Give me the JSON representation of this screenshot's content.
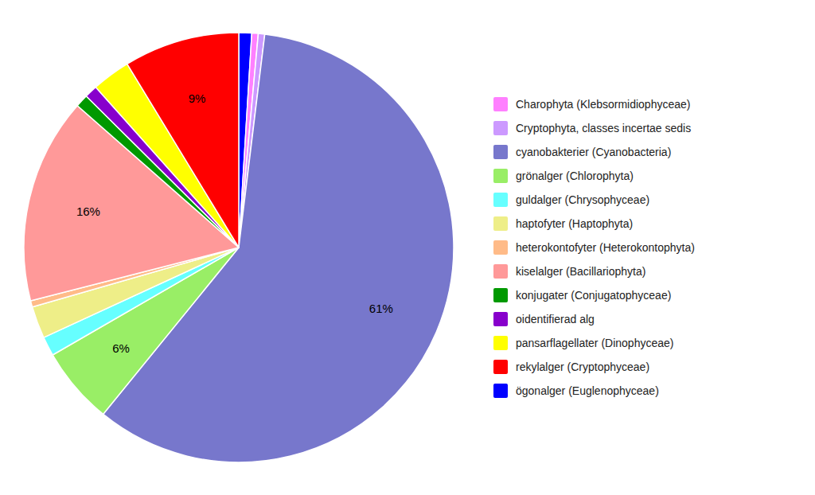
{
  "chart_data": {
    "type": "pie",
    "categories": [
      "ögonalger (Euglenophyceae)",
      "Charophyta (Klebsormidiophyceae)",
      "Cryptophyta, classes incertae sedis",
      "cyanobakterier (Cyanobacteria)",
      "grönalger (Chlorophyta)",
      "guldalger (Chrysophyceae)",
      "haptofyter (Haptophyta)",
      "heterokontofyter (Heterokontophyta)",
      "kiselalger (Bacillariophyta)",
      "konjugater (Conjugatophyceae)",
      "oidentifierad alg",
      "pansarflagellater (Dinophyceae)",
      "rekylalger (Cryptophyceae)"
    ],
    "values": [
      1.0,
      0.5,
      0.5,
      61,
      6,
      1.5,
      2.5,
      0.5,
      16,
      1.0,
      1.0,
      3.0,
      9
    ],
    "value_labels": [
      null,
      null,
      null,
      "61%",
      "6%",
      null,
      null,
      null,
      "16%",
      null,
      null,
      null,
      "9%"
    ],
    "colors": [
      "#0000FF",
      "#FF80FF",
      "#CC99FF",
      "#7777CC",
      "#99EE66",
      "#66FFFF",
      "#EEEE88",
      "#FFBB88",
      "#FF9999",
      "#009900",
      "#8800CC",
      "#FFFF00",
      "#FF0000"
    ],
    "legend_labels": [
      "Charophyta (Klebsormidiophyceae)",
      "Cryptophyta, classes incertae sedis",
      "cyanobakterier (Cyanobacteria)",
      "grönalger (Chlorophyta)",
      "guldalger (Chrysophyceae)",
      "haptofyter (Haptophyta)",
      "heterokontofyter (Heterokontophyta)",
      "kiselalger (Bacillariophyta)",
      "konjugater (Conjugatophyceae)",
      "oidentifierad alg",
      "pansarflagellater (Dinophyceae)",
      "rekylalger (Cryptophyceae)",
      "ögonalger (Euglenophyceae)"
    ],
    "legend": "right",
    "data_labels": true
  }
}
